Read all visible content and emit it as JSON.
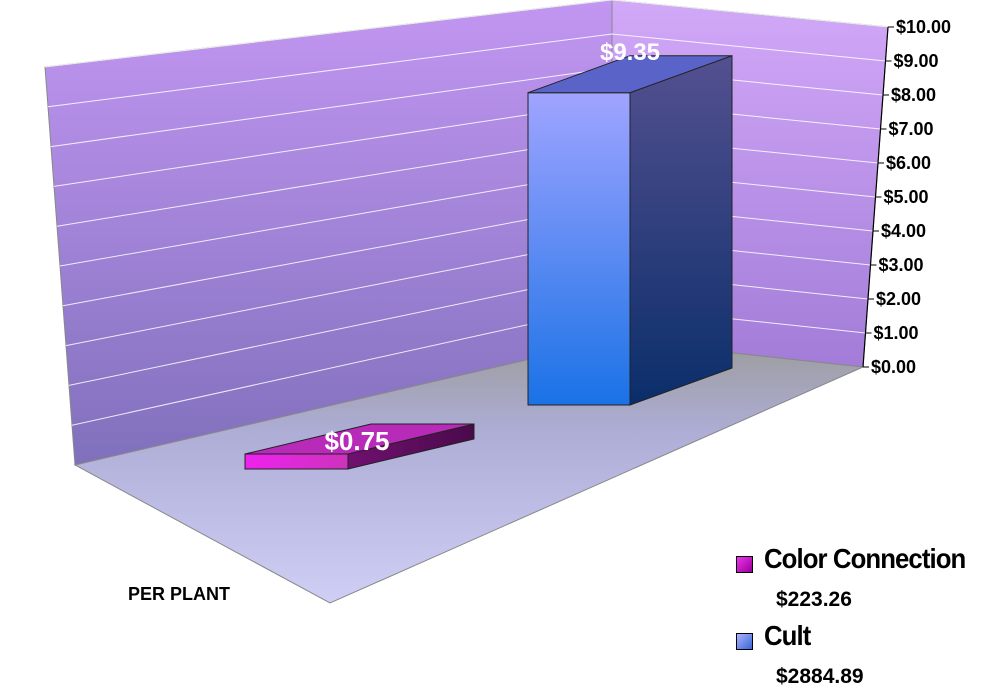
{
  "chart_data": {
    "type": "bar",
    "three_d": true,
    "title": "",
    "categories": [
      "PER PLANT"
    ],
    "series": [
      {
        "name": "Color Connection",
        "values": [
          0.75
        ],
        "data_label": "$0.75",
        "total": "$223.26",
        "color": "#cc00cc"
      },
      {
        "name": "Cult",
        "values": [
          9.35
        ],
        "data_label": "$9.35",
        "total": "$2884.89",
        "color": "#6f8fe0"
      }
    ],
    "ylim": [
      0,
      10
    ],
    "yticks": [
      "$0.00",
      "$1.00",
      "$2.00",
      "$3.00",
      "$4.00",
      "$5.00",
      "$6.00",
      "$7.00",
      "$8.00",
      "$9.00",
      "$10.00"
    ],
    "grid": true,
    "legend_position": "bottom-right",
    "colors": {
      "back_wall": "#b688e8",
      "side_wall": "#c8a0f4",
      "floor": "#bdbde8"
    }
  }
}
